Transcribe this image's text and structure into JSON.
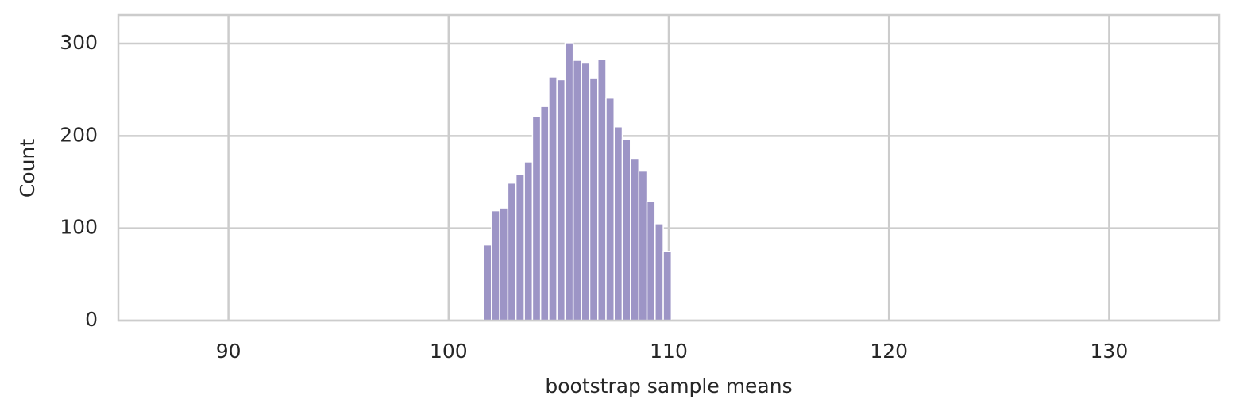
{
  "chart_data": {
    "type": "histogram",
    "x_label": "bootstrap sample means",
    "y_label": "Count",
    "bins": [
      101.58,
      101.95,
      102.32,
      102.69,
      103.06,
      103.44,
      103.81,
      104.18,
      104.55,
      104.92,
      105.29,
      105.66,
      106.04,
      106.41,
      106.78,
      107.15,
      107.52,
      107.89,
      108.26,
      108.64,
      109.01,
      109.38,
      109.75,
      110.12
    ],
    "values": [
      82,
      119,
      122,
      149,
      158,
      172,
      221,
      232,
      264,
      261,
      301,
      282,
      279,
      263,
      283,
      241,
      210,
      196,
      175,
      162,
      129,
      105,
      75
    ],
    "color": "#9d95c6",
    "xlim": [
      85,
      135
    ],
    "xticks": [
      90,
      100,
      110,
      120,
      130
    ],
    "ylim": [
      0,
      331
    ],
    "yticks": [
      0,
      100,
      200,
      300
    ],
    "grid": true
  }
}
